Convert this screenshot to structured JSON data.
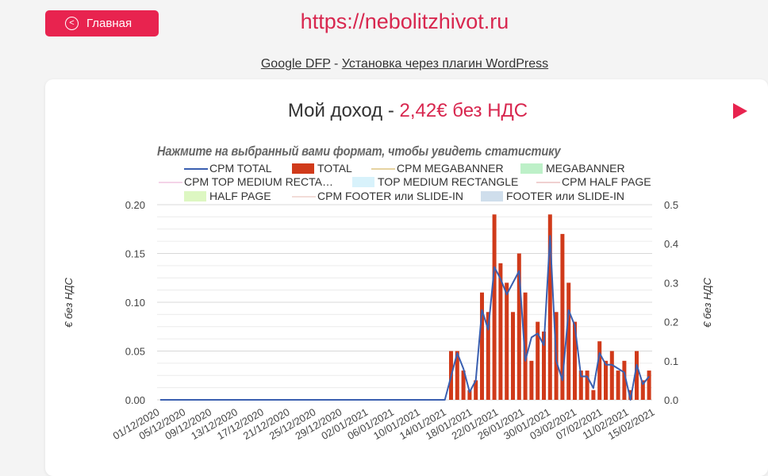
{
  "header": {
    "home_label": "Главная",
    "site_url": "https://nebolitzhivot.ru",
    "link1": "Google DFP",
    "separator": " - ",
    "link2": "Установка через плагин WordPress"
  },
  "income": {
    "title_prefix": "Мой доход - ",
    "amount": "2,42€ без НДС"
  },
  "hint": "Нажмите на выбранный вами формат, чтобы увидеть статистику",
  "legend": [
    {
      "label": "CPM TOTAL",
      "kind": "line",
      "color": "#3a5fb0"
    },
    {
      "label": "TOTAL",
      "kind": "box",
      "color": "#d03a1a"
    },
    {
      "label": "CPM MEGABANNER",
      "kind": "line",
      "color": "#e6d3a0"
    },
    {
      "label": "MEGABANNER",
      "kind": "box",
      "color": "#bdf0c8"
    },
    {
      "label": "CPM TOP MEDIUM RECTA…",
      "kind": "line",
      "color": "#f4d4e8"
    },
    {
      "label": "TOP MEDIUM RECTANGLE",
      "kind": "box",
      "color": "#d8f2fb"
    },
    {
      "label": "CPM HALF PAGE",
      "kind": "line",
      "color": "#f0d0d0"
    },
    {
      "label": "HALF PAGE",
      "kind": "box",
      "color": "#ddf7c2"
    },
    {
      "label": "CPM FOOTER или SLIDE-IN",
      "kind": "line",
      "color": "#f2dcd8"
    },
    {
      "label": "FOOTER или SLIDE-IN",
      "kind": "box",
      "color": "#cfdeec"
    }
  ],
  "colors": {
    "accent": "#e8234f",
    "bars": "#d03a1a",
    "line": "#3a5fb0"
  },
  "chart_data": {
    "type": "bar",
    "x_tick_labels": [
      "01/12/2020",
      "05/12/2020",
      "09/12/2020",
      "13/12/2020",
      "17/12/2020",
      "21/12/2020",
      "25/12/2020",
      "29/12/2020",
      "02/01/2021",
      "06/01/2021",
      "10/01/2021",
      "14/01/2021",
      "18/01/2021",
      "22/01/2021",
      "26/01/2021",
      "30/01/2021",
      "03/02/2021",
      "07/02/2021",
      "11/02/2021",
      "15/02/2021"
    ],
    "y_left_label": "€ без НДС",
    "y_right_label": "€ без НДС",
    "y_left_range": [
      0,
      0.2
    ],
    "y_right_range": [
      0,
      0.5
    ],
    "y_left_ticks": [
      "0.00",
      "0.05",
      "0.10",
      "0.15",
      "0.20"
    ],
    "y_right_ticks": [
      "0.0",
      "0.1",
      "0.2",
      "0.3",
      "0.4",
      "0.5"
    ],
    "grid": true,
    "series": [
      {
        "name": "TOTAL",
        "axis": "left",
        "values": [
          0,
          0,
          0,
          0,
          0,
          0,
          0,
          0,
          0,
          0,
          0,
          0,
          0,
          0,
          0,
          0,
          0,
          0,
          0,
          0,
          0,
          0,
          0,
          0,
          0,
          0,
          0,
          0,
          0,
          0,
          0,
          0,
          0,
          0,
          0,
          0,
          0,
          0,
          0,
          0,
          0,
          0,
          0,
          0,
          0,
          0,
          0,
          0.05,
          0.05,
          0.03,
          0.01,
          0.02,
          0.11,
          0.09,
          0.19,
          0.14,
          0.12,
          0.09,
          0.15,
          0.11,
          0.04,
          0.08,
          0.07,
          0.19,
          0.09,
          0.17,
          0.12,
          0.08,
          0.03,
          0.03,
          0.01,
          0.06,
          0.04,
          0.05,
          0.03,
          0.04,
          0.01,
          0.05,
          0.02,
          0.03
        ]
      },
      {
        "name": "CPM TOTAL",
        "axis": "right",
        "values": [
          0,
          0,
          0,
          0,
          0,
          0,
          0,
          0,
          0,
          0,
          0,
          0,
          0,
          0,
          0,
          0,
          0,
          0,
          0,
          0,
          0,
          0,
          0,
          0,
          0,
          0,
          0,
          0,
          0,
          0,
          0,
          0,
          0,
          0,
          0,
          0,
          0,
          0,
          0,
          0,
          0,
          0,
          0,
          0,
          0,
          0,
          0,
          0.06,
          0.12,
          0.08,
          0.02,
          0.05,
          0.23,
          0.18,
          0.34,
          0.31,
          0.27,
          0.3,
          0.33,
          0.1,
          0.16,
          0.17,
          0.14,
          0.42,
          0.1,
          0.05,
          0.23,
          0.19,
          0.06,
          0.06,
          0.03,
          0.12,
          0.09,
          0.09,
          0.08,
          0.07,
          0.0,
          0.09,
          0.04,
          0.06
        ]
      }
    ]
  }
}
